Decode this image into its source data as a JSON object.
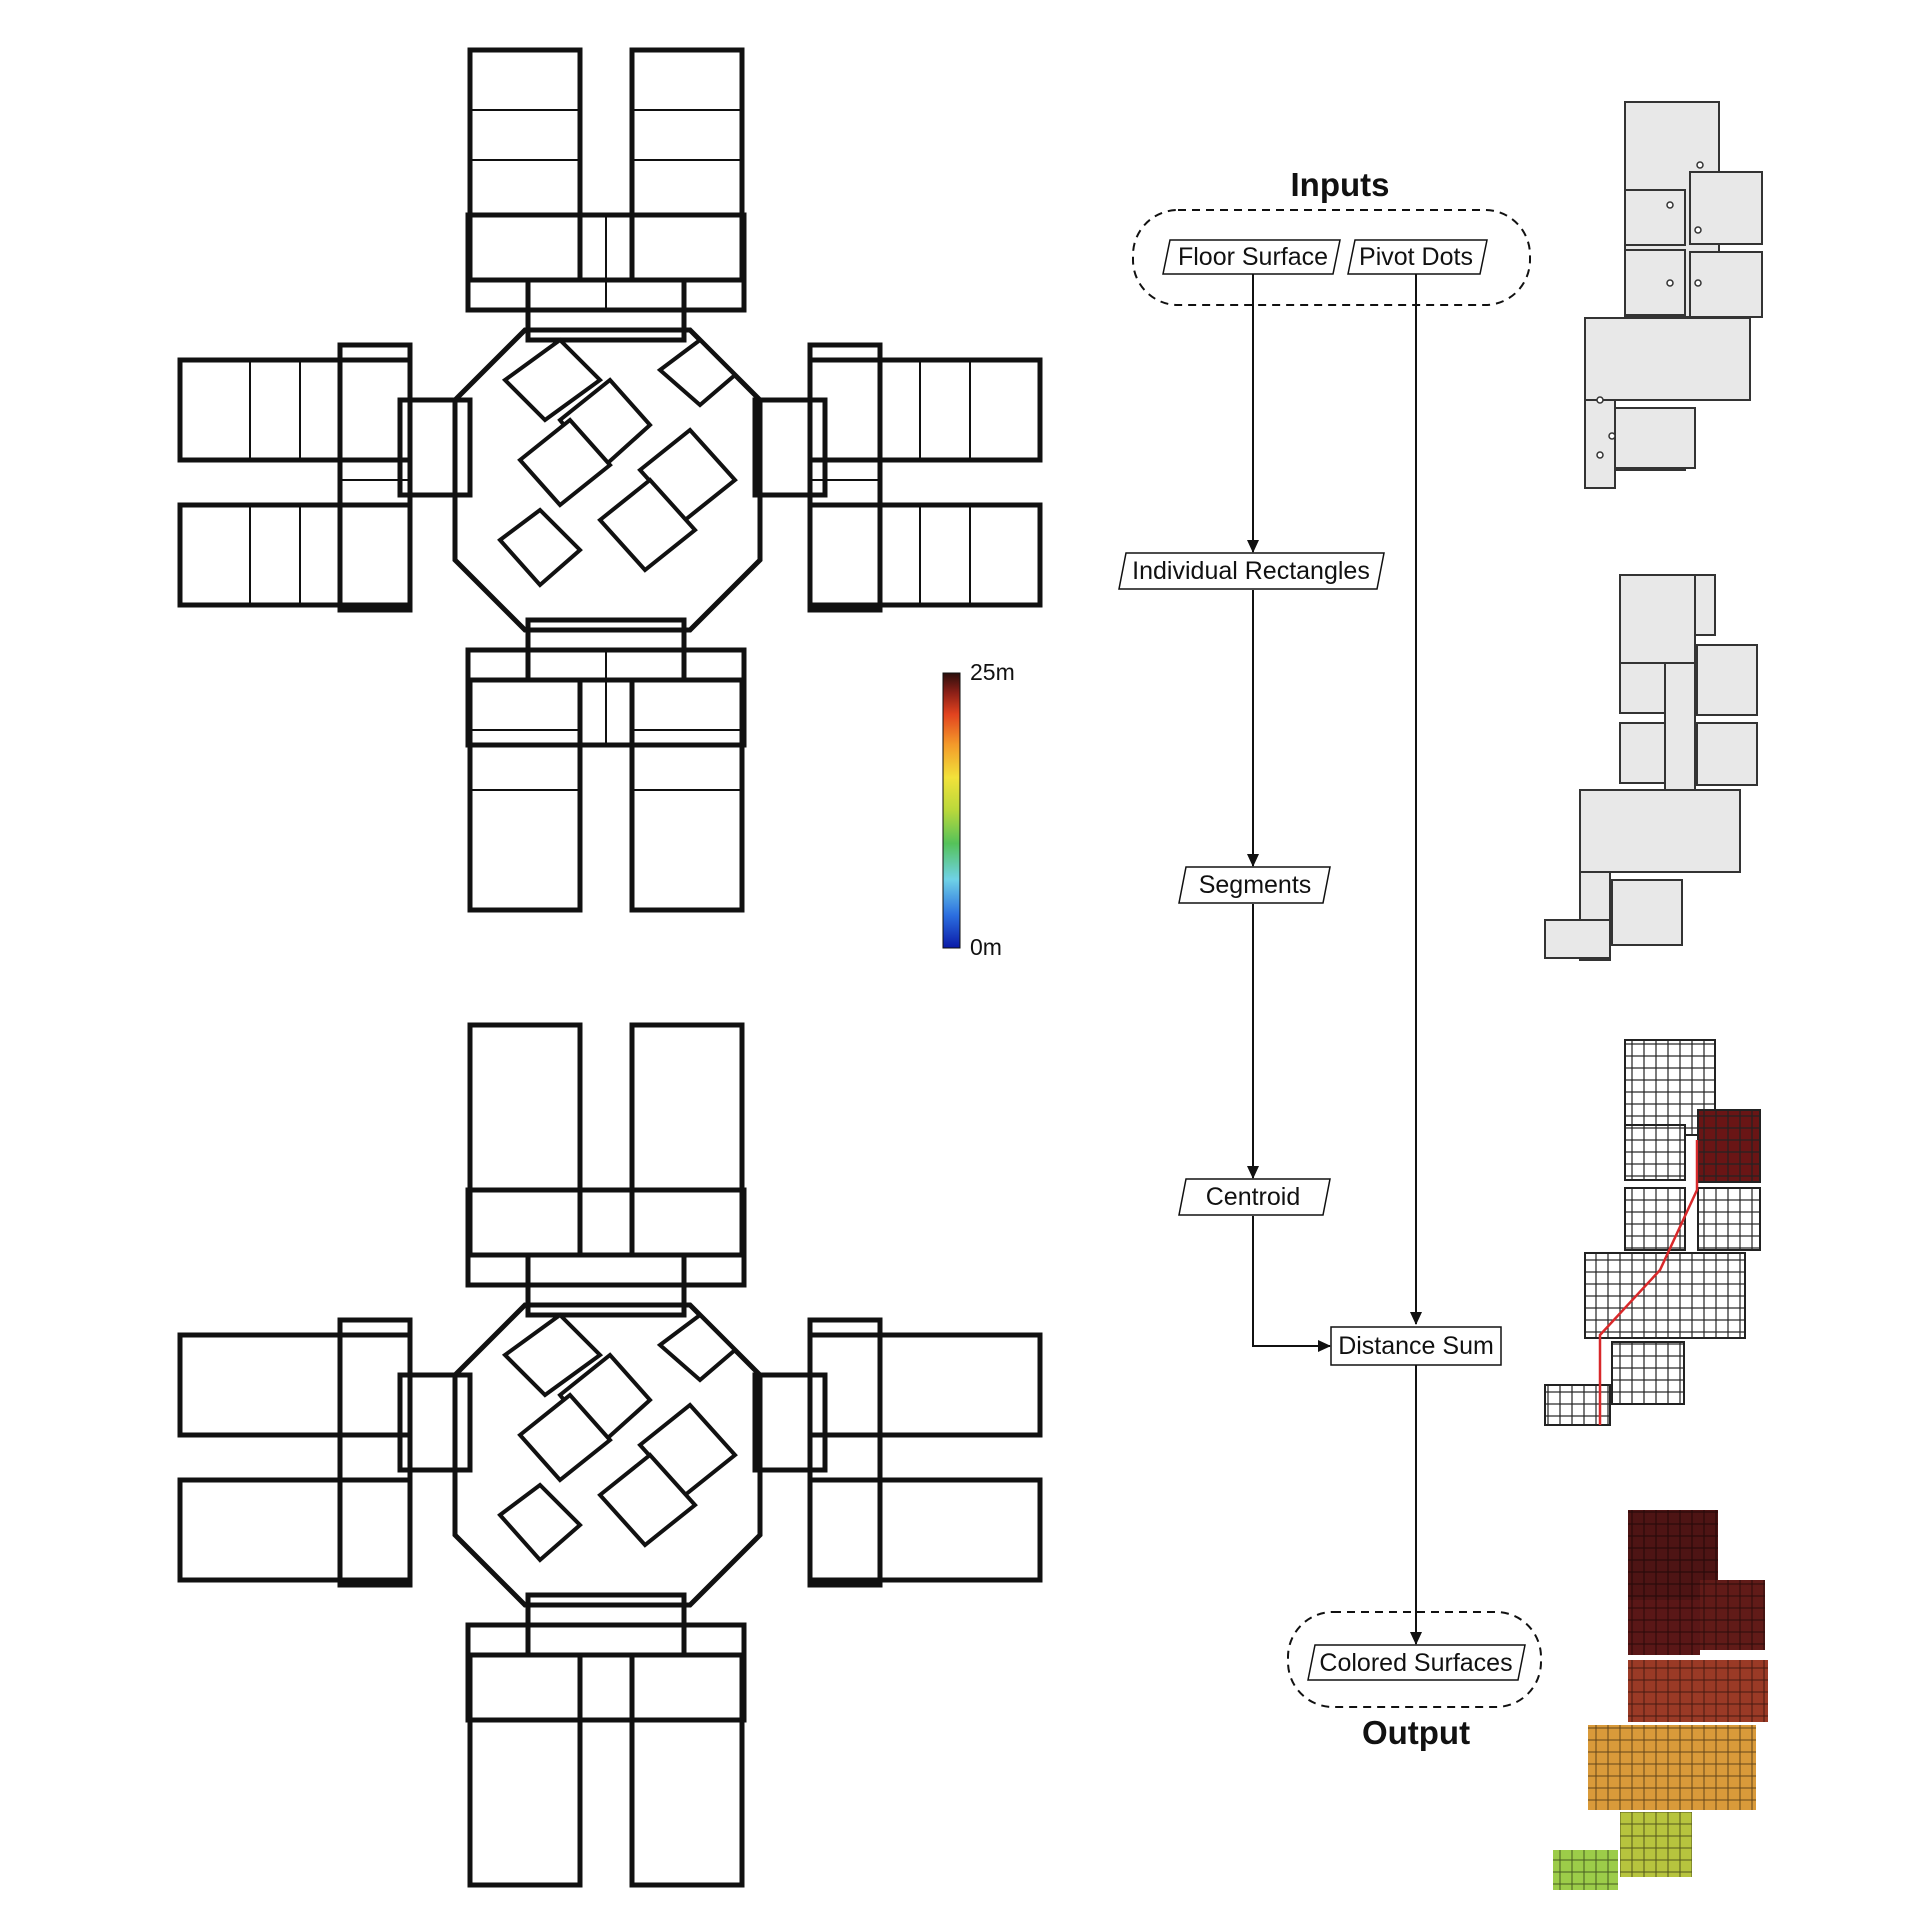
{
  "flow": {
    "inputs_title": "Inputs",
    "output_title": "Output",
    "nodes": {
      "floor_surface": "Floor Surface",
      "pivot_dots": "Pivot Dots",
      "individual_rectangles": "Individual Rectangles",
      "segments": "Segments",
      "centroid": "Centroid",
      "distance_sum": "Distance Sum",
      "colored_surfaces": "Colored Surfaces"
    }
  },
  "scale": {
    "max_label": "25m",
    "min_label": "0m",
    "gradient_colors": [
      "#0a1aa8",
      "#2c6fe0",
      "#6fd2e6",
      "#55c25a",
      "#b9d83b",
      "#f2e23a",
      "#f39a2a",
      "#e2431f",
      "#8a1f17",
      "#2a0e0c"
    ]
  },
  "colors": {
    "gradient_near": "#1f3fd6",
    "gradient_far": "#5a1212",
    "wall": "#111111",
    "panel_fill": "#e8e8e8",
    "path_red": "#d8282a"
  }
}
